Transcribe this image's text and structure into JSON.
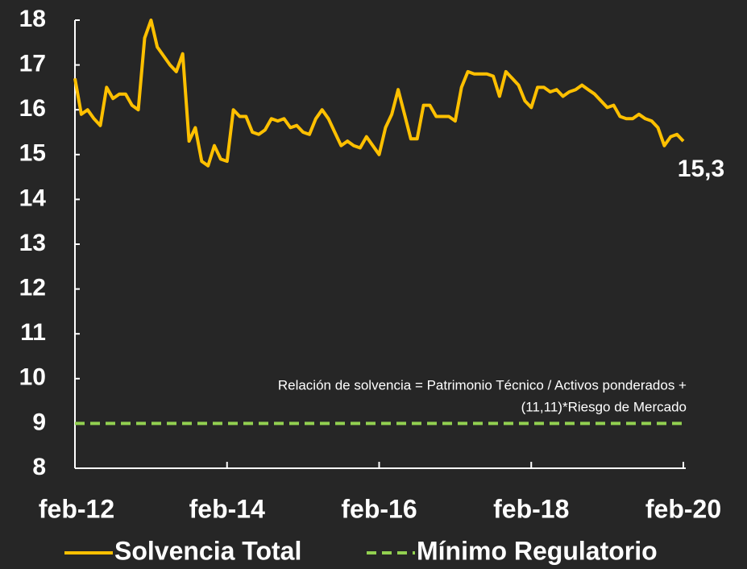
{
  "chart_data": {
    "type": "line",
    "categories": [
      "feb-12",
      null,
      null,
      null,
      null,
      null,
      null,
      null,
      null,
      null,
      null,
      null,
      null,
      null,
      null,
      null,
      null,
      null,
      null,
      null,
      null,
      null,
      null,
      null,
      "feb-14",
      null,
      null,
      null,
      null,
      null,
      null,
      null,
      null,
      null,
      null,
      null,
      null,
      null,
      null,
      null,
      null,
      null,
      null,
      null,
      null,
      null,
      null,
      null,
      "feb-16",
      null,
      null,
      null,
      null,
      null,
      null,
      null,
      null,
      null,
      null,
      null,
      null,
      null,
      null,
      null,
      null,
      null,
      null,
      null,
      null,
      null,
      null,
      null,
      "feb-18",
      null,
      null,
      null,
      null,
      null,
      null,
      null,
      null,
      null,
      null,
      null,
      null,
      null,
      null,
      null,
      null,
      null,
      null,
      null,
      null,
      null,
      null,
      null,
      "feb-20"
    ],
    "series": [
      {
        "name": "Solvencia Total",
        "color": "#ffc000",
        "dashed": false,
        "values": [
          16.7,
          15.9,
          16.0,
          15.8,
          15.65,
          16.5,
          16.25,
          16.35,
          16.35,
          16.1,
          16.0,
          17.6,
          18.0,
          17.4,
          17.2,
          17.0,
          16.85,
          17.25,
          15.3,
          15.6,
          14.85,
          14.75,
          15.2,
          14.9,
          14.85,
          16.0,
          15.85,
          15.85,
          15.5,
          15.45,
          15.55,
          15.8,
          15.75,
          15.8,
          15.6,
          15.65,
          15.5,
          15.45,
          15.8,
          16.0,
          15.8,
          15.5,
          15.2,
          15.3,
          15.2,
          15.15,
          15.4,
          15.2,
          15.0,
          15.6,
          15.9,
          16.45,
          15.9,
          15.35,
          15.35,
          16.1,
          16.1,
          15.85,
          15.85,
          15.85,
          15.75,
          16.5,
          16.85,
          16.8,
          16.8,
          16.8,
          16.75,
          16.3,
          16.85,
          16.7,
          16.55,
          16.2,
          16.05,
          16.5,
          16.5,
          16.4,
          16.45,
          16.3,
          16.4,
          16.45,
          16.55,
          16.45,
          16.35,
          16.2,
          16.05,
          16.1,
          15.85,
          15.8,
          15.8,
          15.9,
          15.8,
          15.75,
          15.6,
          15.2,
          15.4,
          15.45,
          15.3
        ],
        "value_labels": [
          null,
          null,
          null,
          null,
          null,
          null,
          null,
          null,
          null,
          null,
          null,
          null,
          null,
          null,
          null,
          null,
          null,
          null,
          null,
          null,
          null,
          null,
          null,
          null,
          null,
          null,
          null,
          null,
          null,
          null,
          null,
          null,
          null,
          null,
          null,
          null,
          null,
          null,
          null,
          null,
          null,
          null,
          null,
          null,
          null,
          null,
          null,
          null,
          null,
          null,
          null,
          null,
          null,
          null,
          null,
          null,
          null,
          null,
          null,
          null,
          null,
          null,
          null,
          null,
          null,
          null,
          null,
          null,
          null,
          null,
          null,
          null,
          null,
          null,
          null,
          null,
          null,
          null,
          null,
          null,
          null,
          null,
          null,
          null,
          null,
          null,
          null,
          null,
          null,
          null,
          null,
          null,
          null,
          null,
          null,
          null,
          "15,3"
        ]
      },
      {
        "name": "Mínimo Regulatorio",
        "color": "#92d050",
        "dashed": true,
        "values": [
          9,
          9,
          9,
          9,
          9,
          9,
          9,
          9,
          9,
          9,
          9,
          9,
          9,
          9,
          9,
          9,
          9,
          9,
          9,
          9,
          9,
          9,
          9,
          9,
          9,
          9,
          9,
          9,
          9,
          9,
          9,
          9,
          9,
          9,
          9,
          9,
          9,
          9,
          9,
          9,
          9,
          9,
          9,
          9,
          9,
          9,
          9,
          9,
          9,
          9,
          9,
          9,
          9,
          9,
          9,
          9,
          9,
          9,
          9,
          9,
          9,
          9,
          9,
          9,
          9,
          9,
          9,
          9,
          9,
          9,
          9,
          9,
          9,
          9,
          9,
          9,
          9,
          9,
          9,
          9,
          9,
          9,
          9,
          9,
          9,
          9,
          9,
          9,
          9,
          9,
          9,
          9,
          9,
          9,
          9,
          9,
          9
        ]
      }
    ],
    "ylim": [
      8,
      18
    ],
    "yticks": [
      8,
      9,
      10,
      11,
      12,
      13,
      14,
      15,
      16,
      17,
      18
    ],
    "annotation": [
      "Relación de solvencia = Patrimonio Técnico / Activos ponderados +",
      "(11,11)*Riesgo de Mercado"
    ]
  }
}
